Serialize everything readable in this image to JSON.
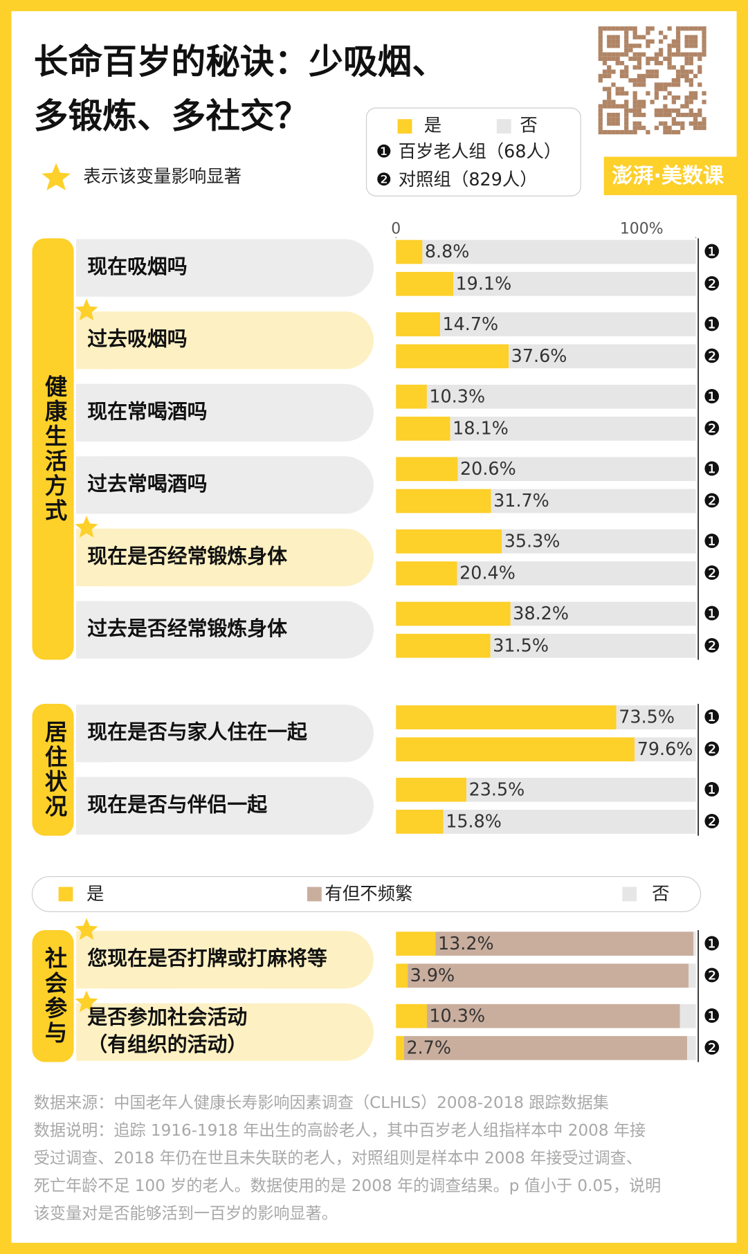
{
  "title_lines": [
    "长命百岁的秘诀：少吸烟、",
    "多锻炼、多社交？"
  ],
  "star_note": "表示该变量影响显著",
  "groups": [
    {
      "marker": "❶",
      "label": "百岁老人组（68人）"
    },
    {
      "marker": "❷",
      "label": "对照组（829人）"
    }
  ],
  "brand": "澎湃·美数课",
  "chart_data": [
    {
      "type": "bar",
      "title": "健康生活方式",
      "xlim": [
        0,
        100
      ],
      "xticks": [
        0,
        {
          "value": 100,
          "label": "100%"
        }
      ],
      "categories": [
        "现在吸烟吗",
        "过去吸烟吗",
        "现在常喝酒吗",
        "过去常喝酒吗",
        "现在是否经常锻炼身体",
        "过去是否经常锻炼身体"
      ],
      "significant": [
        false,
        true,
        false,
        false,
        true,
        false
      ],
      "series": [
        {
          "name": "是",
          "color": "#fdd02a",
          "values": [
            [
              8.8,
              19.1
            ],
            [
              14.7,
              37.6
            ],
            [
              10.3,
              18.1
            ],
            [
              20.6,
              31.7
            ],
            [
              35.3,
              20.4
            ],
            [
              38.2,
              31.5
            ]
          ],
          "value_labels": [
            [
              "8.8%",
              "19.1%"
            ],
            [
              "14.7%",
              "37.6%"
            ],
            [
              "10.3%",
              "18.1%"
            ],
            [
              "20.6%",
              "31.7%"
            ],
            [
              "35.3%",
              "20.4%"
            ],
            [
              "38.2%",
              "31.5%"
            ]
          ]
        },
        {
          "name": "否",
          "color": "#e6e6e6",
          "values": [
            [
              91.2,
              80.9
            ],
            [
              85.3,
              62.4
            ],
            [
              89.7,
              81.9
            ],
            [
              79.4,
              68.3
            ],
            [
              64.7,
              79.6
            ],
            [
              61.8,
              68.5
            ]
          ]
        }
      ]
    },
    {
      "type": "bar",
      "title": "居住状况",
      "xlim": [
        0,
        100
      ],
      "categories": [
        "现在是否与家人住在一起",
        "现在是否与伴侣一起"
      ],
      "significant": [
        false,
        false
      ],
      "series": [
        {
          "color": "#fdd02a",
          "values": [
            [
              73.5,
              79.6
            ],
            [
              23.5,
              15.8
            ]
          ],
          "value_labels": [
            [
              "73.5%",
              "79.6%"
            ],
            [
              "23.5%",
              "15.8%"
            ]
          ]
        },
        {
          "color": "#e6e6e6",
          "values": [
            [
              26.5,
              20.4
            ],
            [
              76.5,
              84.2
            ]
          ]
        }
      ]
    },
    {
      "type": "bar",
      "title": "社会参与",
      "xlim": [
        0,
        100
      ],
      "categories": [
        [
          "您现在是否打牌或打麻将等"
        ],
        [
          "是否参加社会活动",
          "（有组织的活动）"
        ]
      ],
      "significant": [
        true,
        true
      ],
      "series": [
        {
          "name": "是",
          "color": "#fdd02a",
          "values": [
            [
              13.2,
              3.9
            ],
            [
              10.3,
              2.7
            ]
          ],
          "value_labels": [
            [
              "13.2%",
              "3.9%"
            ],
            [
              "10.3%",
              "2.7%"
            ]
          ]
        },
        {
          "name": "有但不频繁",
          "color": "#c9ae9e",
          "values": [
            [
              86,
              93.7
            ],
            [
              84.4,
              94.4
            ]
          ]
        },
        {
          "name": "否",
          "color": "#e6e6e6",
          "values": [
            [
              0.8,
              2.4
            ],
            [
              5.3,
              2.9
            ]
          ]
        }
      ]
    }
  ],
  "footnote_lines": [
    "数据来源：中国老年人健康长寿影响因素调查（CLHLS）2008-2018 跟踪数据集",
    "数据说明：追踪 1916-1918 年出生的高龄老人，其中百岁老人组指样本中 2008 年接",
    "受过调查、2018 年仍在世且未失联的老人，对照组则是样本中 2008 年接受过调查、",
    "死亡年龄不足 100 岁的老人。数据使用的是 2008 年的调查结果。p 值小于 0.05，说明",
    "该变量对是否能够活到一百岁的影响显著。"
  ]
}
